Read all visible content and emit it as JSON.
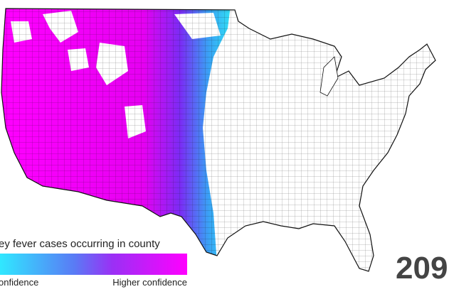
{
  "legend": {
    "title": "ey fever cases occurring in county",
    "low_label": "onfidence",
    "high_label": "Higher confidence"
  },
  "year": "209"
}
